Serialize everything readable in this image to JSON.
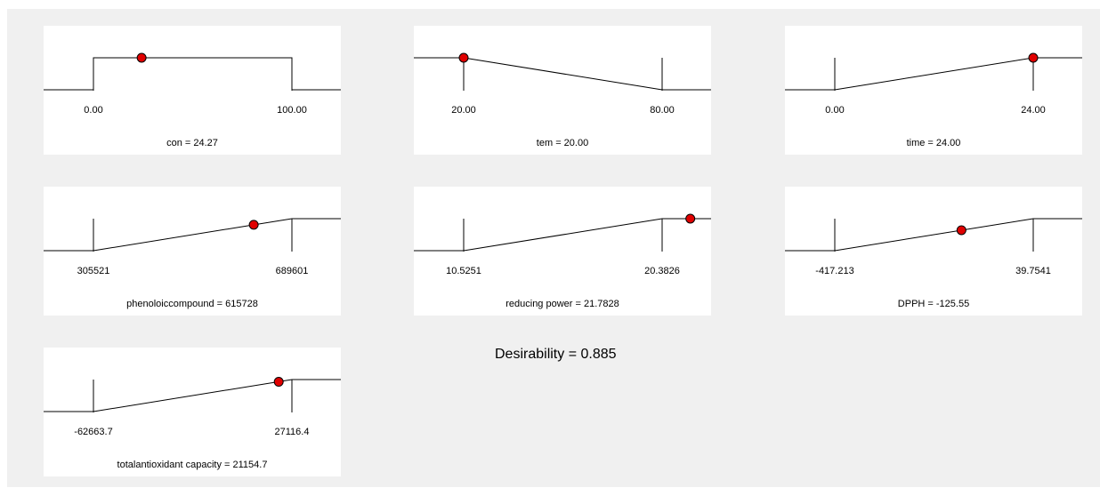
{
  "chart_data": [
    {
      "type": "line",
      "label": "con = 24.27",
      "tick_labels": [
        "0.00",
        "100.00"
      ],
      "shape": "range",
      "low": 0.0,
      "high": 100.0,
      "current": 24.27,
      "current_desirability": 1.0
    },
    {
      "type": "line",
      "label": "tem = 20.00",
      "tick_labels": [
        "20.00",
        "80.00"
      ],
      "shape": "minimize",
      "low": 20.0,
      "high": 80.0,
      "current": 20.0,
      "current_desirability": 1.0
    },
    {
      "type": "line",
      "label": "time = 24.00",
      "tick_labels": [
        "0.00",
        "24.00"
      ],
      "shape": "maximize",
      "low": 0.0,
      "high": 24.0,
      "current": 24.0,
      "current_desirability": 1.0
    },
    {
      "type": "line",
      "label": "phenoloiccompound = 615728",
      "tick_labels": [
        "305521",
        "689601"
      ],
      "shape": "maximize",
      "low": 305521,
      "high": 689601,
      "current": 615728,
      "current_desirability": 0.81
    },
    {
      "type": "line",
      "label": "reducing power  = 21.7828",
      "tick_labels": [
        "10.5251",
        "20.3826"
      ],
      "shape": "maximize",
      "low": 10.5251,
      "high": 20.3826,
      "current": 21.7828,
      "current_desirability": 1.0
    },
    {
      "type": "line",
      "label": "DPPH = -125.55",
      "tick_labels": [
        "-417.213",
        "39.7541"
      ],
      "shape": "maximize",
      "low": -417.213,
      "high": 39.7541,
      "current": -125.55,
      "current_desirability": 0.64
    },
    {
      "type": "line",
      "label": "totalantioxidant capacity = 21154.7",
      "tick_labels": [
        "-62663.7",
        "27116.4"
      ],
      "shape": "maximize",
      "low": -62663.7,
      "high": 27116.4,
      "current": 21154.7,
      "current_desirability": 0.93
    }
  ],
  "desirability_label": "Desirability = 0.885",
  "colors": {
    "background": "#f0f0f0",
    "panel": "#ffffff",
    "line": "#000000",
    "point": "#e00000"
  }
}
